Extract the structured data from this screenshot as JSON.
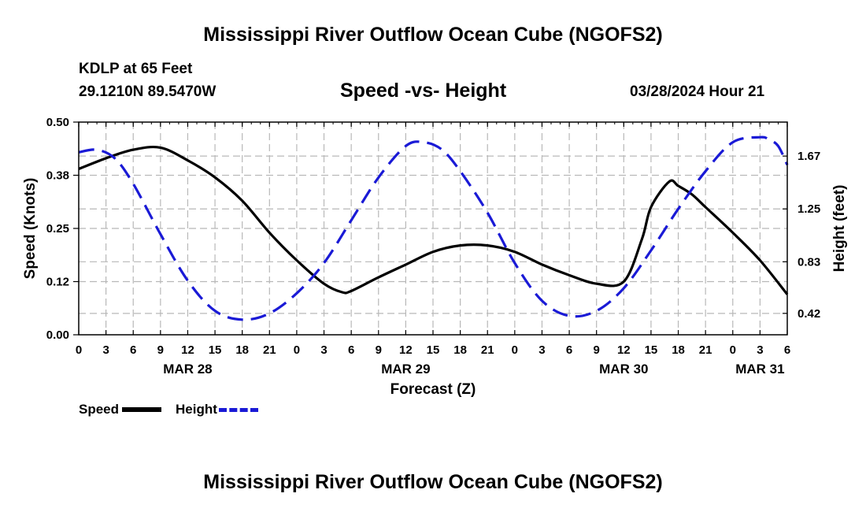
{
  "header": {
    "title": "Mississippi River Outflow Ocean Cube (NGOFS2)",
    "station": "KDLP at 65 Feet",
    "coords": "29.1210N  89.5470W",
    "chart_title": "Speed -vs- Height",
    "datetime": "03/28/2024 Hour 21"
  },
  "footer": {
    "title": "Mississippi River Outflow Ocean Cube (NGOFS2)"
  },
  "legend": {
    "speed_label": "Speed",
    "height_label": "Height"
  },
  "colors": {
    "speed": "#000000",
    "height": "#1a1ad6",
    "grid": "#b8b8b8"
  },
  "chart_data": {
    "type": "line",
    "title": "Speed -vs- Height",
    "xlabel": "Forecast (Z)",
    "ylabel": "Speed (Knots)",
    "y2label": "Height (feet)",
    "xlim": [
      0,
      78
    ],
    "ylim": [
      0,
      0.5
    ],
    "y2lim": [
      0.25,
      1.94
    ],
    "xticks": [
      0,
      3,
      6,
      9,
      12,
      15,
      18,
      21,
      24,
      27,
      30,
      33,
      36,
      39,
      42,
      45,
      48,
      51,
      54,
      57,
      60,
      63,
      66,
      69,
      72,
      75,
      78
    ],
    "xtick_labels": [
      "0",
      "3",
      "6",
      "9",
      "12",
      "15",
      "18",
      "21",
      "0",
      "3",
      "6",
      "9",
      "12",
      "15",
      "18",
      "21",
      "0",
      "3",
      "6",
      "9",
      "12",
      "15",
      "18",
      "21",
      "0",
      "3",
      "6"
    ],
    "date_labels": [
      {
        "x": 12,
        "label": "MAR 28"
      },
      {
        "x": 36,
        "label": "MAR 29"
      },
      {
        "x": 60,
        "label": "MAR 30"
      },
      {
        "x": 75,
        "label": "MAR 31"
      }
    ],
    "yticks": [
      0.0,
      0.125,
      0.25,
      0.375,
      0.5
    ],
    "ytick_labels": [
      "0.00",
      "0.12",
      "0.25",
      "0.38",
      "0.50"
    ],
    "y2ticks": [
      0.42,
      0.83,
      1.25,
      1.67
    ],
    "y2tick_labels": [
      "0.42",
      "0.83",
      "1.25",
      "1.67"
    ],
    "grid": true,
    "series": [
      {
        "name": "Speed",
        "axis": "left",
        "style": "solid",
        "x": [
          0,
          3,
          6,
          9,
          12,
          15,
          18,
          21,
          24,
          27,
          29,
          30,
          33,
          36,
          39,
          42,
          45,
          48,
          51,
          54,
          57,
          60,
          62,
          63,
          65,
          66,
          67.5,
          69,
          72,
          75,
          78
        ],
        "values": [
          0.39,
          0.415,
          0.435,
          0.44,
          0.41,
          0.37,
          0.315,
          0.24,
          0.175,
          0.12,
          0.1,
          0.103,
          0.135,
          0.165,
          0.195,
          0.21,
          0.21,
          0.195,
          0.165,
          0.14,
          0.12,
          0.125,
          0.225,
          0.3,
          0.36,
          0.35,
          0.33,
          0.3,
          0.24,
          0.175,
          0.095
        ]
      },
      {
        "name": "Height",
        "axis": "right",
        "style": "dashed",
        "x": [
          0,
          2,
          4,
          6,
          9,
          12,
          15,
          18,
          21,
          24,
          27,
          30,
          33,
          36,
          38,
          40,
          42,
          45,
          48,
          51,
          54,
          57,
          60,
          63,
          66,
          69,
          72,
          75,
          76,
          77,
          78
        ],
        "values": [
          1.7,
          1.72,
          1.65,
          1.45,
          1.05,
          0.68,
          0.44,
          0.37,
          0.42,
          0.58,
          0.82,
          1.16,
          1.5,
          1.75,
          1.78,
          1.72,
          1.55,
          1.22,
          0.82,
          0.52,
          0.4,
          0.44,
          0.62,
          0.92,
          1.25,
          1.55,
          1.78,
          1.82,
          1.8,
          1.75,
          1.6
        ]
      }
    ]
  }
}
